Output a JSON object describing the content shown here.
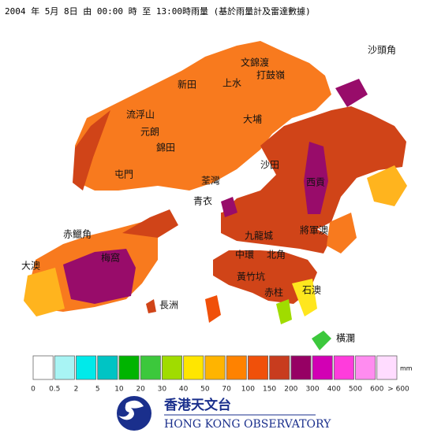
{
  "header": {
    "title": "2004 年  5月  8日 由 00:00 時 至 13:00時雨量 (基於雨量計及雷達數據)"
  },
  "places": [
    "沙頭角",
    "文錦渡",
    "打鼓嶺",
    "上水",
    "新田",
    "流浮山",
    "元朗",
    "錦田",
    "大埔",
    "屯門",
    "沙田",
    "荃灣",
    "青衣",
    "西貢",
    "赤鱲角",
    "九龍城",
    "將軍澳",
    "梅窩",
    "中環",
    "北角",
    "大澳",
    "黃竹坑",
    "長洲",
    "赤柱",
    "石澳",
    "橫瀾"
  ],
  "legend": {
    "unit": "mm",
    "labels": [
      "0",
      "0.5",
      "2",
      "5",
      "10",
      "20",
      "30",
      "40",
      "50",
      "70",
      "100",
      "150",
      "200",
      "300",
      "400",
      "500",
      "600",
      "> 600"
    ],
    "colors": [
      "#ffffff",
      "#a8f4f4",
      "#00eaea",
      "#00c4c4",
      "#00b400",
      "#3cc83c",
      "#a0dc00",
      "#ffe600",
      "#ffb400",
      "#ff8200",
      "#f0500a",
      "#c83c1e",
      "#960064",
      "#d200b4",
      "#ff3cdc",
      "#ff8cf0",
      "#ffdcff"
    ]
  },
  "footer": {
    "name_zh": "香港天文台",
    "name_en": "HONG KONG OBSERVATORY"
  }
}
